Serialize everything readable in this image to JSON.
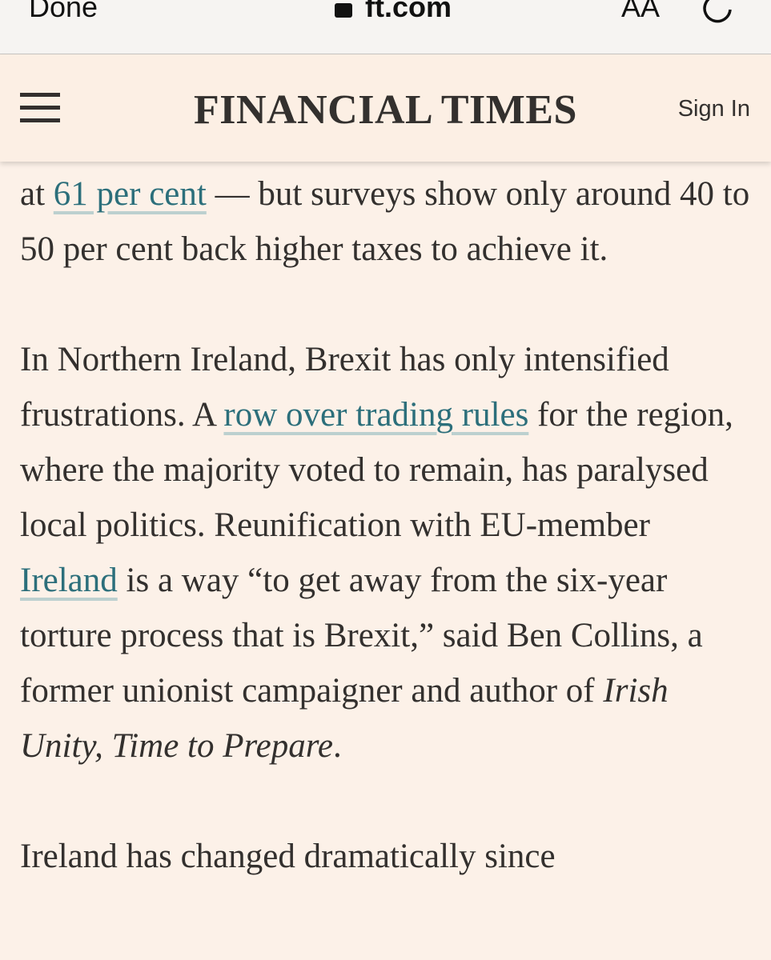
{
  "browser_bar": {
    "done": "Done",
    "url": "ft.com",
    "reader": "AA"
  },
  "header": {
    "title": "FINANCIAL TIMES",
    "sign_in": "Sign In"
  },
  "article": {
    "paragraphs": [
      {
        "segments": [
          {
            "text": "at "
          },
          {
            "text": "61 per cent",
            "link": true
          },
          {
            "text": " — but surveys show only around 40 to 50 per cent back higher taxes to achieve it."
          }
        ]
      },
      {
        "segments": [
          {
            "text": "In Northern Ireland, Brexit has only intensified frustrations. A "
          },
          {
            "text": "row over trading rules",
            "link": true
          },
          {
            "text": " for the region, where the majority voted to remain, has paralysed local politics. Reunification with EU-member "
          },
          {
            "text": "Ireland",
            "link": true
          },
          {
            "text": " is a way “to get away from the six-year torture process that is Brexit,” said Ben Collins, a former unionist campaigner and author of "
          },
          {
            "text": "Irish Unity, Time to Prepare",
            "italic": true
          },
          {
            "text": "."
          }
        ]
      },
      {
        "segments": [
          {
            "text": "Ireland has changed dramatically since"
          }
        ]
      }
    ]
  }
}
